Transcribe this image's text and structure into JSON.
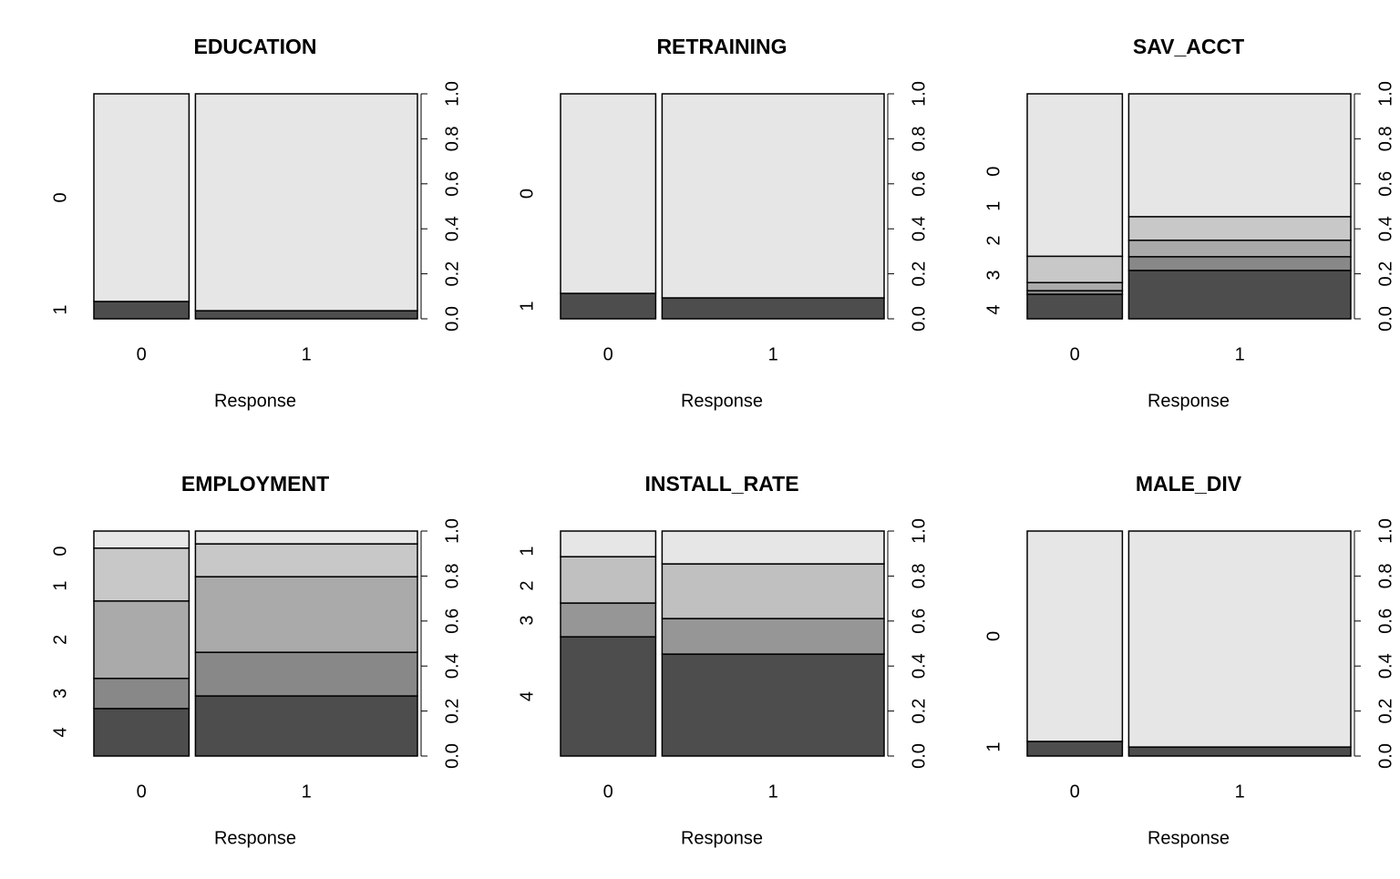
{
  "chart_data": [
    {
      "type": "spine",
      "title": "EDUCATION",
      "xlabel": "Response",
      "categories": [
        "0",
        "1"
      ],
      "widths": [
        0.3,
        0.7
      ],
      "series": [
        {
          "name": "0",
          "color": "#e6e6e6",
          "values": [
            0.923,
            0.964
          ]
        },
        {
          "name": "1",
          "color": "#4d4d4d",
          "values": [
            0.077,
            0.036
          ]
        }
      ],
      "ylim": [
        0,
        1
      ],
      "yticks": [
        {
          "value": 0,
          "label": "0.0"
        },
        {
          "value": 0.2,
          "label": "0.2"
        },
        {
          "value": 0.4,
          "label": "0.4"
        },
        {
          "value": 0.6,
          "label": "0.6"
        },
        {
          "value": 0.8,
          "label": "0.8"
        },
        {
          "value": 1,
          "label": "1.0"
        }
      ]
    },
    {
      "type": "spine",
      "title": "RETRAINING",
      "xlabel": "Response",
      "categories": [
        "0",
        "1"
      ],
      "widths": [
        0.3,
        0.7
      ],
      "series": [
        {
          "name": "0",
          "color": "#e6e6e6",
          "values": [
            0.887,
            0.907
          ]
        },
        {
          "name": "1",
          "color": "#4d4d4d",
          "values": [
            0.113,
            0.093
          ]
        }
      ],
      "ylim": [
        0,
        1
      ],
      "yticks": [
        {
          "value": 0,
          "label": "0.0"
        },
        {
          "value": 0.2,
          "label": "0.2"
        },
        {
          "value": 0.4,
          "label": "0.4"
        },
        {
          "value": 0.6,
          "label": "0.6"
        },
        {
          "value": 0.8,
          "label": "0.8"
        },
        {
          "value": 1,
          "label": "1.0"
        }
      ]
    },
    {
      "type": "spine",
      "title": "SAV_ACCT",
      "xlabel": "Response",
      "categories": [
        "0",
        "1"
      ],
      "widths": [
        0.3,
        0.7
      ],
      "series": [
        {
          "name": "0",
          "color": "#e6e6e6",
          "values": [
            0.722,
            0.546
          ]
        },
        {
          "name": "1",
          "color": "#c8c8c8",
          "values": [
            0.117,
            0.105
          ]
        },
        {
          "name": "2",
          "color": "#aaaaaa",
          "values": [
            0.036,
            0.073
          ]
        },
        {
          "name": "3",
          "color": "#888888",
          "values": [
            0.016,
            0.061
          ]
        },
        {
          "name": "4",
          "color": "#4d4d4d",
          "values": [
            0.109,
            0.215
          ]
        }
      ],
      "ylim": [
        0,
        1
      ],
      "yticks": [
        {
          "value": 0,
          "label": "0.0"
        },
        {
          "value": 0.2,
          "label": "0.2"
        },
        {
          "value": 0.4,
          "label": "0.4"
        },
        {
          "value": 0.6,
          "label": "0.6"
        },
        {
          "value": 0.8,
          "label": "0.8"
        },
        {
          "value": 1,
          "label": "1.0"
        }
      ]
    },
    {
      "type": "spine",
      "title": "EMPLOYMENT",
      "xlabel": "Response",
      "categories": [
        "0",
        "1"
      ],
      "widths": [
        0.3,
        0.7
      ],
      "series": [
        {
          "name": "0",
          "color": "#e6e6e6",
          "values": [
            0.076,
            0.057
          ]
        },
        {
          "name": "1",
          "color": "#c8c8c8",
          "values": [
            0.235,
            0.146
          ]
        },
        {
          "name": "2",
          "color": "#aaaaaa",
          "values": [
            0.344,
            0.336
          ]
        },
        {
          "name": "3",
          "color": "#888888",
          "values": [
            0.134,
            0.194
          ]
        },
        {
          "name": "4",
          "color": "#4d4d4d",
          "values": [
            0.211,
            0.267
          ]
        }
      ],
      "ylim": [
        0,
        1
      ],
      "yticks": [
        {
          "value": 0,
          "label": "0.0"
        },
        {
          "value": 0.2,
          "label": "0.2"
        },
        {
          "value": 0.4,
          "label": "0.4"
        },
        {
          "value": 0.6,
          "label": "0.6"
        },
        {
          "value": 0.8,
          "label": "0.8"
        },
        {
          "value": 1,
          "label": "1.0"
        }
      ]
    },
    {
      "type": "spine",
      "title": "INSTALL_RATE",
      "xlabel": "Response",
      "categories": [
        "0",
        "1"
      ],
      "widths": [
        0.3,
        0.7
      ],
      "series": [
        {
          "name": "1",
          "color": "#e6e6e6",
          "values": [
            0.114,
            0.146
          ]
        },
        {
          "name": "2",
          "color": "#c0c0c0",
          "values": [
            0.206,
            0.243
          ]
        },
        {
          "name": "3",
          "color": "#969696",
          "values": [
            0.15,
            0.158
          ]
        },
        {
          "name": "4",
          "color": "#4d4d4d",
          "values": [
            0.53,
            0.453
          ]
        }
      ],
      "ylim": [
        0,
        1
      ],
      "yticks": [
        {
          "value": 0,
          "label": "0.0"
        },
        {
          "value": 0.2,
          "label": "0.2"
        },
        {
          "value": 0.4,
          "label": "0.4"
        },
        {
          "value": 0.6,
          "label": "0.6"
        },
        {
          "value": 0.8,
          "label": "0.8"
        },
        {
          "value": 1,
          "label": "1.0"
        }
      ]
    },
    {
      "type": "spine",
      "title": "MALE_DIV",
      "xlabel": "Response",
      "categories": [
        "0",
        "1"
      ],
      "widths": [
        0.3,
        0.7
      ],
      "series": [
        {
          "name": "0",
          "color": "#e6e6e6",
          "values": [
            0.935,
            0.96
          ]
        },
        {
          "name": "1",
          "color": "#4d4d4d",
          "values": [
            0.065,
            0.04
          ]
        }
      ],
      "ylim": [
        0,
        1
      ],
      "yticks": [
        {
          "value": 0,
          "label": "0.0"
        },
        {
          "value": 0.2,
          "label": "0.2"
        },
        {
          "value": 0.4,
          "label": "0.4"
        },
        {
          "value": 0.6,
          "label": "0.6"
        },
        {
          "value": 0.8,
          "label": "0.8"
        },
        {
          "value": 1,
          "label": "1.0"
        }
      ]
    }
  ]
}
